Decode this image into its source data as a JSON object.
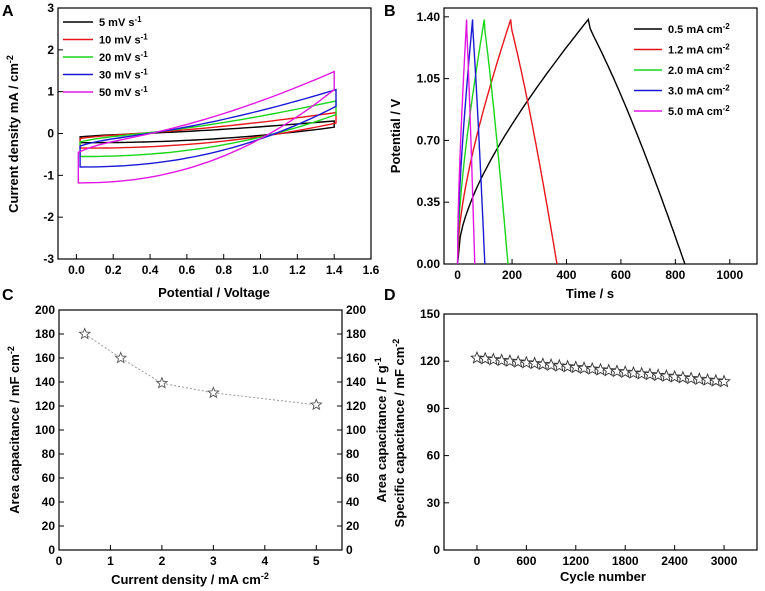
{
  "chart_data": [
    {
      "panel": "A",
      "type": "line",
      "xlabel": "Potential / Voltage",
      "ylabel": "Current density mA / cm",
      "ylabel_sup": "-2",
      "xlim": [
        -0.1,
        1.6
      ],
      "ylim": [
        -3,
        3
      ],
      "xticks": [
        "0.0",
        "0.2",
        "0.4",
        "0.6",
        "0.8",
        "1.0",
        "1.2",
        "1.4",
        "1.6"
      ],
      "yticks": [
        "-3",
        "-2",
        "-1",
        "0",
        "1",
        "2",
        "3"
      ],
      "legend_position": "top-left",
      "series": [
        {
          "name": "5 mV s",
          "sup": "-1",
          "color": "#000000",
          "vmin": 0.02,
          "vmax": 1.4,
          "i_upper": [
            -0.08,
            0.3
          ],
          "i_lower": [
            -0.22,
            0.15
          ]
        },
        {
          "name": "10 mV s",
          "sup": "-1",
          "color": "#e8161a",
          "vmin": 0.02,
          "vmax": 1.41,
          "i_upper": [
            -0.12,
            0.5
          ],
          "i_lower": [
            -0.35,
            0.25
          ]
        },
        {
          "name": "20 mV s",
          "sup": "-1",
          "color": "#19d619",
          "vmin": 0.02,
          "vmax": 1.41,
          "i_upper": [
            -0.2,
            0.78
          ],
          "i_lower": [
            -0.55,
            0.45
          ]
        },
        {
          "name": "30 mV s",
          "sup": "-1",
          "color": "#1a1ad6",
          "vmin": 0.02,
          "vmax": 1.41,
          "i_upper": [
            -0.3,
            1.05
          ],
          "i_lower": [
            -0.8,
            0.65
          ]
        },
        {
          "name": "50 mV s",
          "sup": "-1",
          "color": "#e316e3",
          "vmin": 0.01,
          "vmax": 1.4,
          "i_upper": [
            -0.45,
            1.48
          ],
          "i_lower": [
            -1.18,
            1.05
          ]
        }
      ]
    },
    {
      "panel": "B",
      "type": "line",
      "xlabel": "Time / s",
      "ylabel": "Potential / V",
      "xlim": [
        -50,
        1100
      ],
      "ylim": [
        0,
        1.45
      ],
      "xticks": [
        "0",
        "200",
        "400",
        "600",
        "800",
        "1000"
      ],
      "yticks": [
        "0.00",
        "0.35",
        "0.70",
        "1.05",
        "1.40"
      ],
      "legend_position": "top-right",
      "series": [
        {
          "name": "0.5 mA cm",
          "sup": "-2",
          "color": "#000000",
          "t_peak": 480,
          "t_end": 835
        },
        {
          "name": "1.2 mA cm",
          "sup": "-2",
          "color": "#e8161a",
          "t_peak": 195,
          "t_end": 365
        },
        {
          "name": "2.0 mA cm",
          "sup": "-2",
          "color": "#19d619",
          "t_peak": 98,
          "t_end": 185
        },
        {
          "name": "3.0 mA cm",
          "sup": "-2",
          "color": "#1a1ad6",
          "t_peak": 55,
          "t_end": 100
        },
        {
          "name": "5.0 mA cm",
          "sup": "-2",
          "color": "#e316e3",
          "t_peak": 33,
          "t_end": 63
        }
      ]
    },
    {
      "panel": "C",
      "type": "scatter",
      "xlabel": "Current density / mA cm",
      "xlabel_sup": "-2",
      "ylabel": "Area capacitance / mF cm",
      "ylabel_sup": "-2",
      "ylabel_right": "Area capacitance / F g",
      "ylabel_right_sup": "-1",
      "xlim": [
        0,
        5.5
      ],
      "ylim": [
        0,
        200
      ],
      "xticks": [
        "0",
        "1",
        "2",
        "3",
        "4",
        "5"
      ],
      "yticks": [
        "0",
        "20",
        "40",
        "60",
        "80",
        "100",
        "120",
        "140",
        "160",
        "180",
        "200"
      ],
      "x": [
        0.5,
        1.2,
        2.0,
        3.0,
        5.0
      ],
      "y": [
        180,
        160,
        139,
        131,
        121
      ]
    },
    {
      "panel": "D",
      "type": "scatter",
      "xlabel": "Cycle number",
      "ylabel": "Specific capacitance / mF cm",
      "ylabel_sup": "-2",
      "xlim": [
        -400,
        3400
      ],
      "ylim": [
        0,
        150
      ],
      "xticks": [
        "0",
        "600",
        "1200",
        "1800",
        "2400",
        "3000"
      ],
      "yticks": [
        "0",
        "30",
        "60",
        "90",
        "120",
        "150"
      ],
      "cycles_start": 0,
      "cycles_end": 3000,
      "cycles_step": 100,
      "capacitance_start": 122,
      "capacitance_end": 107
    }
  ]
}
